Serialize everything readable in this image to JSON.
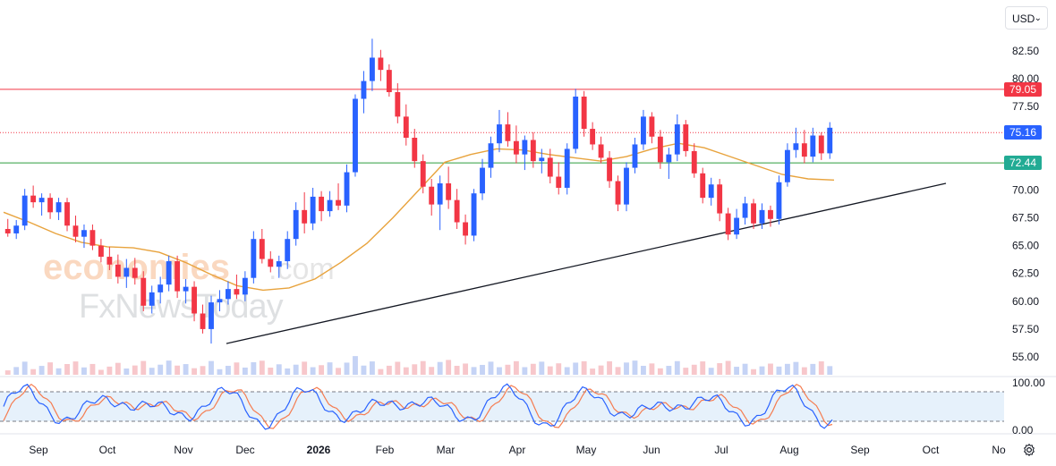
{
  "chart_data": {
    "type": "candlestick",
    "currency": "USD",
    "y_axis": {
      "range": [
        54,
        85
      ],
      "ticks": [
        "82.50",
        "80.00",
        "77.50",
        "70.00",
        "67.50",
        "65.00",
        "62.50",
        "60.00",
        "57.50",
        "55.00"
      ]
    },
    "x_axis": {
      "labels": [
        "Sep",
        "Oct",
        "Nov",
        "Dec",
        "2026",
        "Feb",
        "Mar",
        "Apr",
        "May",
        "Jun",
        "Jul",
        "Aug",
        "Sep",
        "Oct",
        "No"
      ]
    },
    "price_labels": [
      {
        "value": "79.05",
        "color": "#f23645"
      },
      {
        "value": "75.16",
        "color": "#2962ff"
      },
      {
        "value": "72.44",
        "color": "#22ab94"
      }
    ],
    "horizontal_lines": [
      {
        "value": 79.05,
        "color": "#f23645",
        "style": "solid"
      },
      {
        "value": 75.16,
        "color": "#f23645",
        "style": "dotted"
      },
      {
        "value": 72.44,
        "color": "#2e9e3e",
        "style": "solid"
      }
    ],
    "trendline": {
      "from": {
        "date": "Nov 25, 2025",
        "price": 56.2
      },
      "to": {
        "date": "Sep 25, 2026",
        "price": 70.6
      },
      "color": "#131722"
    },
    "moving_average": {
      "color": "#e8a33d",
      "points": [
        [
          68.0,
          76.3
        ],
        [
          67.1,
          75.2
        ],
        [
          66.1,
          73.6
        ],
        [
          65.3,
          71.0
        ],
        [
          64.9,
          69.0
        ],
        [
          64.8,
          67.2
        ],
        [
          64.4,
          65.0
        ],
        [
          63.5,
          62.6
        ],
        [
          62.4,
          60.8
        ],
        [
          61.4,
          58.6
        ],
        [
          61.0,
          56.6
        ],
        [
          61.2,
          55.0
        ],
        [
          62.0,
          53.4
        ],
        [
          63.5,
          51.2
        ],
        [
          65.2,
          49.4
        ],
        [
          67.5,
          47.6
        ],
        [
          70.0,
          45.8
        ],
        [
          72.5,
          43.6
        ],
        [
          73.2,
          42.0
        ],
        [
          73.7,
          40.0
        ],
        [
          73.6,
          38.2
        ],
        [
          73.2,
          36.4
        ],
        [
          72.9,
          34.6
        ],
        [
          72.6,
          33.0
        ],
        [
          73.0,
          31.3
        ],
        [
          73.7,
          29.7
        ],
        [
          74.2,
          28.0
        ],
        [
          73.8,
          26.4
        ],
        [
          73.0,
          24.7
        ],
        [
          72.2,
          23.0
        ],
        [
          71.4,
          21.3
        ],
        [
          71.0,
          19.6
        ],
        [
          70.9,
          18.0
        ]
      ]
    },
    "candles": [
      [
        66.5,
        67.4,
        65.8,
        66.1
      ],
      [
        66.1,
        67.3,
        65.6,
        66.8
      ],
      [
        66.8,
        70.1,
        66.4,
        69.5
      ],
      [
        69.5,
        70.4,
        68.4,
        68.9
      ],
      [
        68.9,
        69.7,
        67.7,
        69.3
      ],
      [
        69.3,
        69.7,
        67.4,
        68.0
      ],
      [
        68.0,
        69.3,
        67.3,
        68.9
      ],
      [
        68.9,
        69.3,
        66.3,
        66.8
      ],
      [
        66.8,
        67.7,
        65.3,
        65.8
      ],
      [
        65.8,
        66.9,
        64.8,
        66.4
      ],
      [
        66.4,
        66.9,
        64.6,
        65.0
      ],
      [
        65.0,
        65.6,
        63.5,
        64.0
      ],
      [
        64.0,
        64.9,
        62.8,
        63.3
      ],
      [
        63.3,
        64.2,
        61.6,
        62.2
      ],
      [
        62.2,
        63.8,
        61.2,
        63.0
      ],
      [
        63.0,
        63.9,
        61.5,
        62.1
      ],
      [
        62.1,
        62.7,
        59.1,
        59.6
      ],
      [
        59.6,
        61.4,
        58.9,
        60.8
      ],
      [
        60.8,
        62.2,
        59.8,
        61.5
      ],
      [
        61.5,
        64.1,
        60.9,
        63.6
      ],
      [
        63.6,
        64.1,
        60.3,
        60.9
      ],
      [
        60.9,
        62.0,
        59.8,
        61.3
      ],
      [
        61.3,
        61.8,
        58.2,
        58.9
      ],
      [
        58.9,
        59.7,
        57.1,
        57.5
      ],
      [
        57.5,
        60.5,
        56.2,
        59.9
      ],
      [
        59.9,
        61.0,
        59.1,
        60.2
      ],
      [
        60.2,
        61.8,
        59.7,
        61.1
      ],
      [
        61.1,
        62.4,
        60.2,
        60.6
      ],
      [
        60.6,
        62.7,
        60.0,
        62.1
      ],
      [
        62.1,
        66.3,
        61.6,
        65.6
      ],
      [
        65.6,
        66.5,
        63.4,
        63.8
      ],
      [
        63.8,
        64.5,
        62.6,
        63.1
      ],
      [
        63.1,
        64.1,
        62.1,
        63.6
      ],
      [
        63.6,
        66.3,
        62.9,
        65.6
      ],
      [
        65.6,
        68.9,
        65.0,
        68.2
      ],
      [
        68.2,
        69.8,
        66.1,
        67.0
      ],
      [
        67.0,
        70.2,
        66.4,
        69.4
      ],
      [
        69.4,
        69.9,
        67.2,
        68.1
      ],
      [
        68.1,
        69.9,
        67.6,
        69.1
      ],
      [
        69.1,
        70.6,
        68.2,
        68.6
      ],
      [
        68.6,
        72.3,
        68.0,
        71.6
      ],
      [
        71.6,
        78.6,
        71.2,
        78.2
      ],
      [
        78.2,
        80.7,
        76.9,
        79.8
      ],
      [
        79.8,
        83.6,
        78.9,
        81.9
      ],
      [
        81.9,
        82.6,
        79.8,
        80.8
      ],
      [
        80.8,
        81.3,
        78.4,
        78.8
      ],
      [
        78.8,
        79.6,
        76.0,
        76.6
      ],
      [
        76.6,
        77.7,
        74.0,
        74.7
      ],
      [
        74.7,
        75.5,
        72.0,
        72.6
      ],
      [
        72.6,
        73.2,
        69.7,
        70.3
      ],
      [
        70.3,
        71.0,
        67.7,
        68.7
      ],
      [
        68.7,
        71.3,
        66.4,
        70.6
      ],
      [
        70.6,
        72.1,
        68.3,
        69.1
      ],
      [
        69.1,
        70.1,
        66.5,
        67.1
      ],
      [
        67.1,
        67.8,
        65.1,
        65.9
      ],
      [
        65.9,
        70.1,
        65.4,
        69.7
      ],
      [
        69.7,
        72.8,
        69.1,
        72.0
      ],
      [
        72.0,
        74.8,
        71.1,
        74.2
      ],
      [
        74.2,
        77.2,
        73.4,
        75.9
      ],
      [
        75.9,
        77.0,
        73.9,
        74.4
      ],
      [
        74.4,
        75.8,
        72.4,
        73.2
      ],
      [
        73.2,
        74.9,
        71.8,
        74.5
      ],
      [
        74.5,
        75.2,
        72.0,
        72.6
      ],
      [
        72.6,
        73.7,
        71.5,
        72.9
      ],
      [
        72.9,
        73.7,
        70.6,
        71.2
      ],
      [
        71.2,
        72.5,
        69.6,
        70.2
      ],
      [
        70.2,
        74.2,
        69.6,
        73.7
      ],
      [
        73.7,
        79.1,
        73.3,
        78.4
      ],
      [
        78.4,
        78.9,
        74.8,
        75.5
      ],
      [
        75.5,
        76.1,
        73.6,
        74.1
      ],
      [
        74.1,
        74.8,
        72.4,
        72.9
      ],
      [
        72.9,
        73.5,
        70.2,
        70.8
      ],
      [
        70.8,
        71.3,
        68.1,
        68.7
      ],
      [
        68.7,
        72.5,
        68.1,
        72.0
      ],
      [
        72.0,
        74.7,
        71.5,
        74.1
      ],
      [
        74.1,
        77.2,
        73.6,
        76.6
      ],
      [
        76.6,
        77.0,
        74.2,
        74.8
      ],
      [
        74.8,
        75.4,
        71.9,
        72.5
      ],
      [
        72.5,
        73.8,
        71.0,
        73.2
      ],
      [
        73.2,
        76.8,
        72.6,
        75.9
      ],
      [
        75.9,
        76.3,
        73.0,
        73.5
      ],
      [
        73.5,
        74.2,
        71.1,
        71.5
      ],
      [
        71.5,
        72.0,
        68.8,
        69.3
      ],
      [
        69.3,
        71.1,
        68.6,
        70.5
      ],
      [
        70.5,
        71.0,
        67.2,
        67.9
      ],
      [
        67.9,
        68.4,
        65.5,
        66.0
      ],
      [
        66.0,
        68.3,
        65.6,
        67.5
      ],
      [
        67.5,
        69.4,
        66.9,
        68.8
      ],
      [
        68.8,
        69.2,
        66.5,
        67.0
      ],
      [
        67.0,
        68.8,
        66.5,
        68.2
      ],
      [
        68.2,
        68.6,
        66.7,
        67.4
      ],
      [
        67.4,
        71.3,
        66.9,
        70.7
      ],
      [
        70.7,
        74.2,
        70.3,
        73.6
      ],
      [
        73.6,
        75.6,
        72.9,
        74.2
      ],
      [
        74.2,
        75.4,
        72.4,
        73.0
      ],
      [
        73.0,
        75.6,
        72.5,
        74.9
      ],
      [
        74.9,
        75.2,
        72.7,
        73.3
      ],
      [
        73.3,
        76.1,
        72.8,
        75.6
      ]
    ],
    "stochastic": {
      "ticks": [
        "100.00",
        "0.00"
      ],
      "upper_band": 80,
      "lower_band": 20,
      "k_color": "#2962ff",
      "d_color": "#f57c50"
    }
  }
}
